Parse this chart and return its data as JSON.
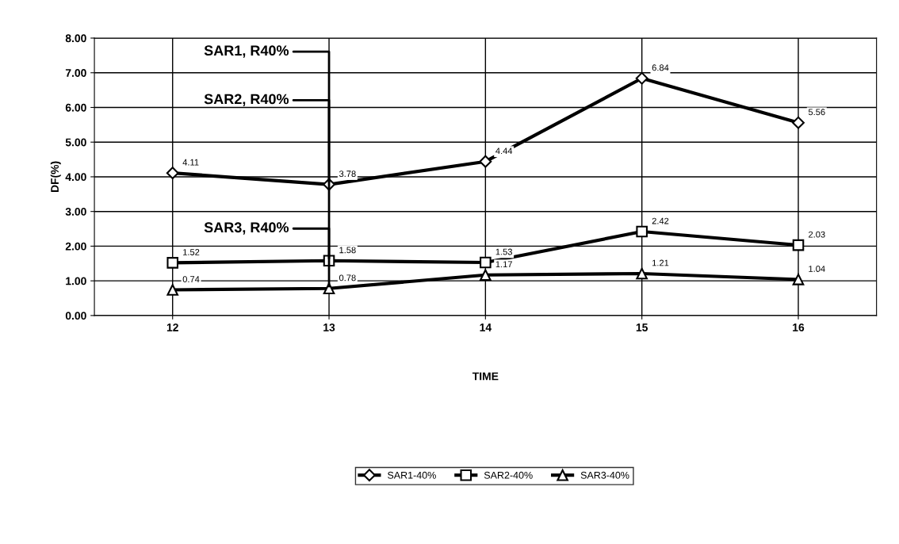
{
  "chart_data": {
    "type": "line",
    "xlabel": "TIME",
    "ylabel": "DF(%)",
    "categories": [
      "12",
      "13",
      "14",
      "15",
      "16"
    ],
    "series": [
      {
        "name": "SAR1-40%",
        "color": "#000000",
        "marker": "diamond",
        "values": [
          4.11,
          3.78,
          4.44,
          6.84,
          5.56
        ]
      },
      {
        "name": "SAR2-40%",
        "color": "#000000",
        "marker": "square",
        "values": [
          1.52,
          1.58,
          1.53,
          2.42,
          2.03
        ]
      },
      {
        "name": "SAR3-40%",
        "color": "#000000",
        "marker": "triangle",
        "values": [
          0.74,
          0.78,
          1.17,
          1.21,
          1.04
        ]
      }
    ],
    "ylim": [
      0,
      8
    ],
    "yticks": [
      {
        "value": 0,
        "label": "0.00"
      },
      {
        "value": 1,
        "label": "1.00"
      },
      {
        "value": 2,
        "label": "2.00"
      },
      {
        "value": 3,
        "label": "3.00"
      },
      {
        "value": 4,
        "label": "4.00"
      },
      {
        "value": 5,
        "label": "5.00"
      },
      {
        "value": 6,
        "label": "6.00"
      },
      {
        "value": 7,
        "label": "7.00"
      },
      {
        "value": 8,
        "label": "8.00"
      }
    ],
    "grid": true,
    "legend": "bottom",
    "data_labels": true,
    "line_style": "solid",
    "annotations": [
      {
        "text": "SAR1, R40%",
        "x": "13",
        "y": 3.78
      },
      {
        "text": "SAR2, R40%",
        "x": "13",
        "y": 1.58
      },
      {
        "text": "SAR3, R40%",
        "x": "13",
        "y": 0.78
      }
    ]
  }
}
